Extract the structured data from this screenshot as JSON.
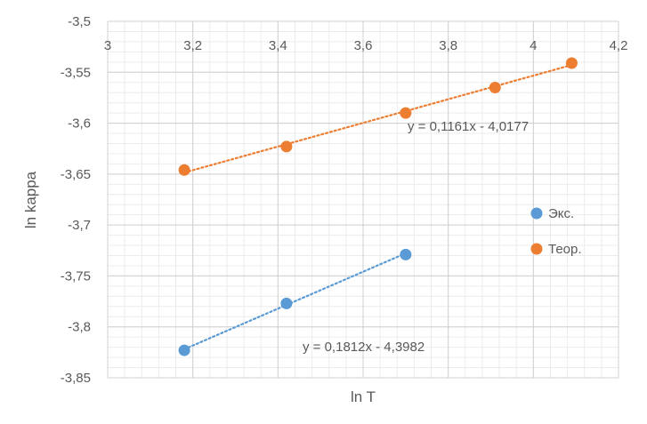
{
  "chart_data": {
    "type": "scatter",
    "title": "",
    "xlabel": "ln T",
    "ylabel": "ln kappa",
    "xlim": [
      3,
      4.2
    ],
    "ylim": [
      -3.85,
      -3.5
    ],
    "x_major_step": 0.2,
    "x_minor_step": 0.04,
    "y_major_step": 0.05,
    "y_minor_step": 0.01,
    "x_tick_labels": [
      "3",
      "3,2",
      "3,4",
      "3,6",
      "3,8",
      "4",
      "4,2"
    ],
    "y_tick_labels": [
      "-3,5",
      "-3,55",
      "-3,6",
      "-3,65",
      "-3,7",
      "-3,75",
      "-3,8",
      "-3,85"
    ],
    "grid": true,
    "legend_position": "right",
    "series": [
      {
        "name": "Экс.",
        "color": "#5B9BD5",
        "x": [
          3.18,
          3.42,
          3.7
        ],
        "y": [
          -3.823,
          -3.777,
          -3.729
        ],
        "trendline": {
          "slope": 0.1812,
          "intercept": -4.3982,
          "label": "y = 0,1812x - 4,3982",
          "x_start": 3.18,
          "x_end": 3.7
        }
      },
      {
        "name": "Теор.",
        "color": "#ED7D31",
        "x": [
          3.18,
          3.42,
          3.7,
          3.91,
          4.09
        ],
        "y": [
          -3.646,
          -3.623,
          -3.59,
          -3.565,
          -3.541
        ],
        "trendline": {
          "slope": 0.1161,
          "intercept": -4.0177,
          "label": "y = 0,1161x - 4,0177",
          "x_start": 3.18,
          "x_end": 4.09
        }
      }
    ]
  }
}
